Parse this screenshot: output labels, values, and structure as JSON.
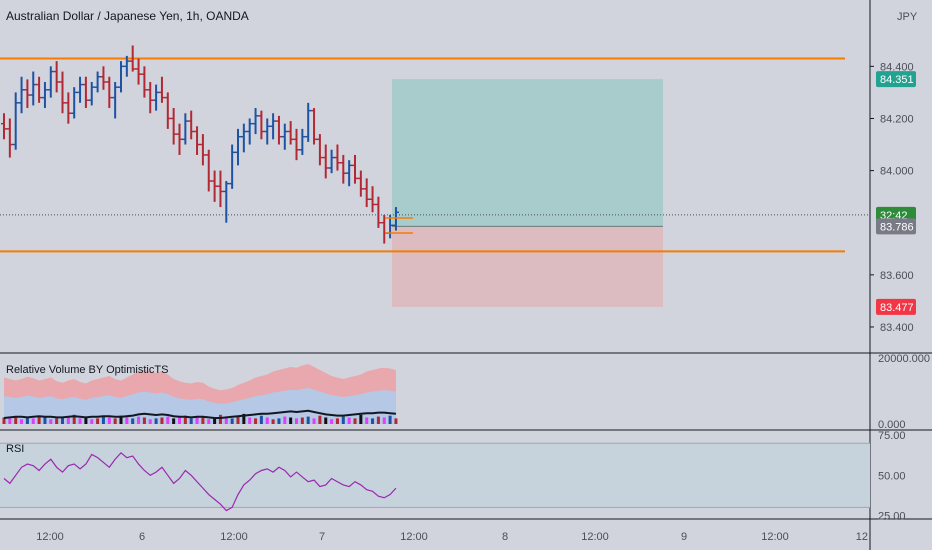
{
  "chart_data": [
    {
      "type": "candlestick",
      "title": "Australian Dollar / Japanese Yen, 1h, OANDA",
      "currency": "JPY",
      "y_ticks": [
        "84.400",
        "84.200",
        "84.000",
        "83.600",
        "83.400"
      ],
      "x_ticks": [
        "12:00",
        "6",
        "12:00",
        "7",
        "12:00",
        "8",
        "12:00",
        "9",
        "12:00",
        "12"
      ],
      "ylim": [
        83.35,
        84.62
      ],
      "bull_color": "#1e53a4",
      "bear_color": "#b22833",
      "ohlc": [
        [
          84.18,
          84.22,
          84.12,
          84.16
        ],
        [
          84.16,
          84.2,
          84.05,
          84.1
        ],
        [
          84.1,
          84.3,
          84.08,
          84.26
        ],
        [
          84.26,
          84.36,
          84.22,
          84.31
        ],
        [
          84.31,
          84.35,
          84.24,
          84.29
        ],
        [
          84.29,
          84.38,
          84.25,
          84.33
        ],
        [
          84.33,
          84.36,
          84.26,
          84.28
        ],
        [
          84.28,
          84.34,
          84.24,
          84.31
        ],
        [
          84.31,
          84.4,
          84.28,
          84.38
        ],
        [
          84.38,
          84.42,
          84.3,
          84.34
        ],
        [
          84.34,
          84.38,
          84.22,
          84.26
        ],
        [
          84.26,
          84.3,
          84.18,
          84.22
        ],
        [
          84.22,
          84.32,
          84.2,
          84.3
        ],
        [
          84.3,
          84.36,
          84.26,
          84.33
        ],
        [
          84.33,
          84.36,
          84.24,
          84.27
        ],
        [
          84.27,
          84.34,
          84.25,
          84.32
        ],
        [
          84.32,
          84.38,
          84.3,
          84.36
        ],
        [
          84.36,
          84.4,
          84.31,
          84.34
        ],
        [
          84.34,
          84.36,
          84.24,
          84.28
        ],
        [
          84.28,
          84.34,
          84.2,
          84.32
        ],
        [
          84.32,
          84.42,
          84.3,
          84.4
        ],
        [
          84.4,
          84.44,
          84.36,
          84.42
        ],
        [
          84.42,
          84.48,
          84.38,
          84.39
        ],
        [
          84.39,
          84.43,
          84.33,
          84.37
        ],
        [
          84.37,
          84.4,
          84.28,
          84.31
        ],
        [
          84.31,
          84.34,
          84.22,
          84.27
        ],
        [
          84.27,
          84.33,
          84.23,
          84.3
        ],
        [
          84.3,
          84.36,
          84.26,
          84.28
        ],
        [
          84.28,
          84.3,
          84.16,
          84.2
        ],
        [
          84.2,
          84.24,
          84.1,
          84.14
        ],
        [
          84.14,
          84.18,
          84.06,
          84.12
        ],
        [
          84.12,
          84.22,
          84.1,
          84.19
        ],
        [
          84.19,
          84.23,
          84.12,
          84.15
        ],
        [
          84.15,
          84.17,
          84.06,
          84.1
        ],
        [
          84.1,
          84.14,
          84.02,
          84.06
        ],
        [
          84.06,
          84.08,
          83.92,
          83.96
        ],
        [
          83.96,
          84.0,
          83.88,
          83.94
        ],
        [
          83.94,
          84.0,
          83.86,
          83.92
        ],
        [
          83.92,
          83.96,
          83.8,
          83.95
        ],
        [
          83.95,
          84.1,
          83.93,
          84.07
        ],
        [
          84.07,
          84.16,
          84.02,
          84.13
        ],
        [
          84.13,
          84.18,
          84.07,
          84.15
        ],
        [
          84.15,
          84.2,
          84.1,
          84.18
        ],
        [
          84.18,
          84.24,
          84.14,
          84.21
        ],
        [
          84.21,
          84.23,
          84.12,
          84.15
        ],
        [
          84.15,
          84.2,
          84.1,
          84.17
        ],
        [
          84.17,
          84.22,
          84.12,
          84.19
        ],
        [
          84.19,
          84.21,
          84.1,
          84.13
        ],
        [
          84.13,
          84.18,
          84.08,
          84.15
        ],
        [
          84.15,
          84.19,
          84.1,
          84.12
        ],
        [
          84.12,
          84.16,
          84.04,
          84.08
        ],
        [
          84.08,
          84.16,
          84.06,
          84.13
        ],
        [
          84.13,
          84.26,
          84.11,
          84.23
        ],
        [
          84.23,
          84.24,
          84.1,
          84.12
        ],
        [
          84.12,
          84.14,
          84.02,
          84.05
        ],
        [
          84.05,
          84.1,
          83.97,
          84.01
        ],
        [
          84.01,
          84.08,
          83.99,
          84.05
        ],
        [
          84.05,
          84.1,
          84.0,
          84.03
        ],
        [
          84.03,
          84.06,
          83.95,
          83.99
        ],
        [
          83.99,
          84.04,
          83.94,
          84.02
        ],
        [
          84.02,
          84.06,
          83.95,
          83.97
        ],
        [
          83.97,
          84.0,
          83.9,
          83.93
        ],
        [
          83.93,
          83.97,
          83.86,
          83.89
        ],
        [
          83.89,
          83.94,
          83.84,
          83.87
        ],
        [
          83.87,
          83.9,
          83.78,
          83.8
        ],
        [
          83.8,
          83.83,
          83.72,
          83.76
        ],
        [
          83.76,
          83.83,
          83.74,
          83.79
        ],
        [
          83.79,
          83.86,
          83.77,
          83.84
        ]
      ],
      "support_resistance_lines": [
        84.43,
        83.69
      ],
      "position": {
        "target": 84.351,
        "entry": 83.786,
        "stop": 83.477
      },
      "price_labels": [
        {
          "text": "84.351",
          "value": 84.351,
          "color": "#22a392"
        },
        {
          "text": "32:42",
          "value": 83.83,
          "color": "#2e8b3a"
        },
        {
          "text": "83.786",
          "value": 83.786,
          "color": "#787b86"
        },
        {
          "text": "83.477",
          "value": 83.477,
          "color": "#f23645"
        }
      ],
      "colors": {
        "line": "#f57c00",
        "target_zone": "#a8cbcb",
        "stop_zone": "#dcbcc1",
        "last_price_line": "#4a4e59"
      }
    },
    {
      "type": "bar",
      "title": "Relative Volume BY OptimisticTS",
      "y_ticks": [
        "20000.000",
        "0.000"
      ],
      "bar_colors": [
        "#b22833",
        "#e040fb",
        "#1e53a4",
        "#111111"
      ],
      "volume": [
        5,
        4,
        6,
        3,
        5,
        4,
        7,
        5,
        3,
        4,
        6,
        5,
        8,
        4,
        5,
        3,
        4,
        6,
        5,
        4,
        7,
        5,
        4,
        6,
        5,
        3,
        4,
        5,
        6,
        4,
        5,
        7,
        4,
        5,
        6,
        3,
        4,
        8,
        5,
        4,
        6,
        9,
        5,
        4,
        7,
        5,
        3,
        4,
        6,
        5,
        4,
        5,
        6,
        4,
        7,
        5,
        3,
        4,
        6,
        5,
        4,
        8,
        5,
        4,
        6,
        5,
        7,
        4
      ],
      "volume_color_index": [
        0,
        1,
        0,
        1,
        2,
        1,
        0,
        2,
        1,
        0,
        2,
        1,
        0,
        1,
        3,
        1,
        0,
        2,
        1,
        0,
        3,
        1,
        2,
        1,
        0,
        1,
        2,
        0,
        1,
        3,
        1,
        0,
        2,
        1,
        0,
        1,
        3,
        0,
        1,
        2,
        0,
        3,
        1,
        0,
        2,
        1,
        0,
        2,
        1,
        3,
        1,
        0,
        2,
        1,
        0,
        3,
        1,
        0,
        2,
        1,
        0,
        3,
        1,
        2,
        0,
        1,
        2,
        0
      ],
      "upper_band": [
        62,
        60,
        58,
        60,
        63,
        61,
        58,
        60,
        62,
        57,
        55,
        58,
        60,
        56,
        54,
        58,
        60,
        62,
        64,
        60,
        58,
        62,
        66,
        70,
        72,
        70,
        68,
        70,
        66,
        60,
        57,
        55,
        54,
        56,
        55,
        50,
        47,
        45,
        46,
        48,
        52,
        55,
        58,
        62,
        64,
        66,
        70,
        72,
        74,
        76,
        75,
        78,
        80,
        76,
        72,
        68,
        64,
        62,
        60,
        62,
        64,
        66,
        70,
        72,
        74,
        75,
        74,
        72
      ],
      "baseline": [
        10,
        11,
        12,
        12,
        11,
        12,
        13,
        12,
        12,
        11,
        11,
        12,
        13,
        12,
        11,
        12,
        12,
        13,
        13,
        12,
        12,
        13,
        14,
        16,
        17,
        16,
        15,
        16,
        15,
        13,
        12,
        12,
        11,
        12,
        12,
        11,
        10,
        10,
        11,
        12,
        13,
        14,
        15,
        16,
        17,
        17,
        18,
        19,
        20,
        21,
        20,
        21,
        22,
        20,
        18,
        16,
        15,
        14,
        14,
        15,
        16,
        17,
        18,
        18,
        19,
        19,
        18,
        17
      ]
    },
    {
      "type": "line",
      "title": "RSI",
      "y_ticks": [
        "75.00",
        "50.00",
        "25.00"
      ],
      "ylim": [
        24,
        77
      ],
      "color": "#9c27b0",
      "band_color": "#c6d3dd",
      "values": [
        48,
        45,
        50,
        55,
        57,
        56,
        53,
        57,
        60,
        55,
        52,
        56,
        57,
        54,
        57,
        63,
        61,
        58,
        55,
        60,
        64,
        61,
        62,
        57,
        53,
        50,
        52,
        55,
        50,
        45,
        48,
        53,
        50,
        46,
        42,
        38,
        35,
        32,
        28,
        30,
        38,
        44,
        47,
        51,
        53,
        54,
        52,
        55,
        53,
        49,
        52,
        49,
        46,
        47,
        43,
        44,
        48,
        46,
        44,
        43,
        46,
        44,
        41,
        40,
        37,
        36,
        38,
        42
      ]
    }
  ],
  "colors": {
    "background": "#d1d4dc",
    "pane_border": "#131722",
    "axis_text": "#4a4e59",
    "rsi_pane_bg": "#d8e2e7"
  }
}
